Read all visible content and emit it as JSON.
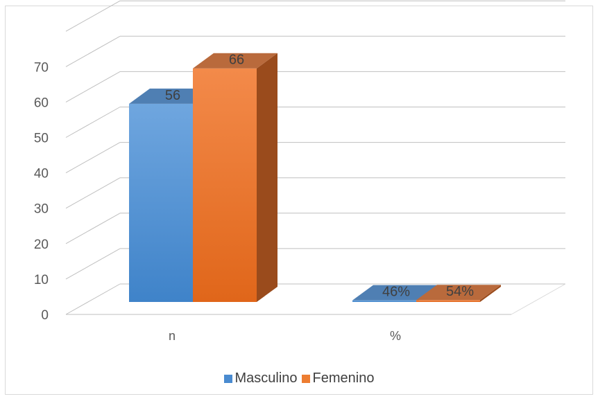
{
  "chart_data": {
    "type": "bar",
    "style": "3d-clustered-column",
    "categories": [
      "n",
      "%"
    ],
    "series": [
      {
        "name": "Masculino",
        "values": [
          56,
          0.46
        ],
        "labels": [
          "56",
          "46%"
        ],
        "color": "#5b9bd5"
      },
      {
        "name": "Femenino",
        "values": [
          66,
          0.54
        ],
        "labels": [
          "66",
          "54%"
        ],
        "color": "#ed7d31"
      }
    ],
    "yticks": [
      "0",
      "10",
      "20",
      "30",
      "40",
      "50",
      "60",
      "70"
    ],
    "ylim": [
      0,
      80
    ],
    "grid": true,
    "legend_position": "bottom"
  }
}
